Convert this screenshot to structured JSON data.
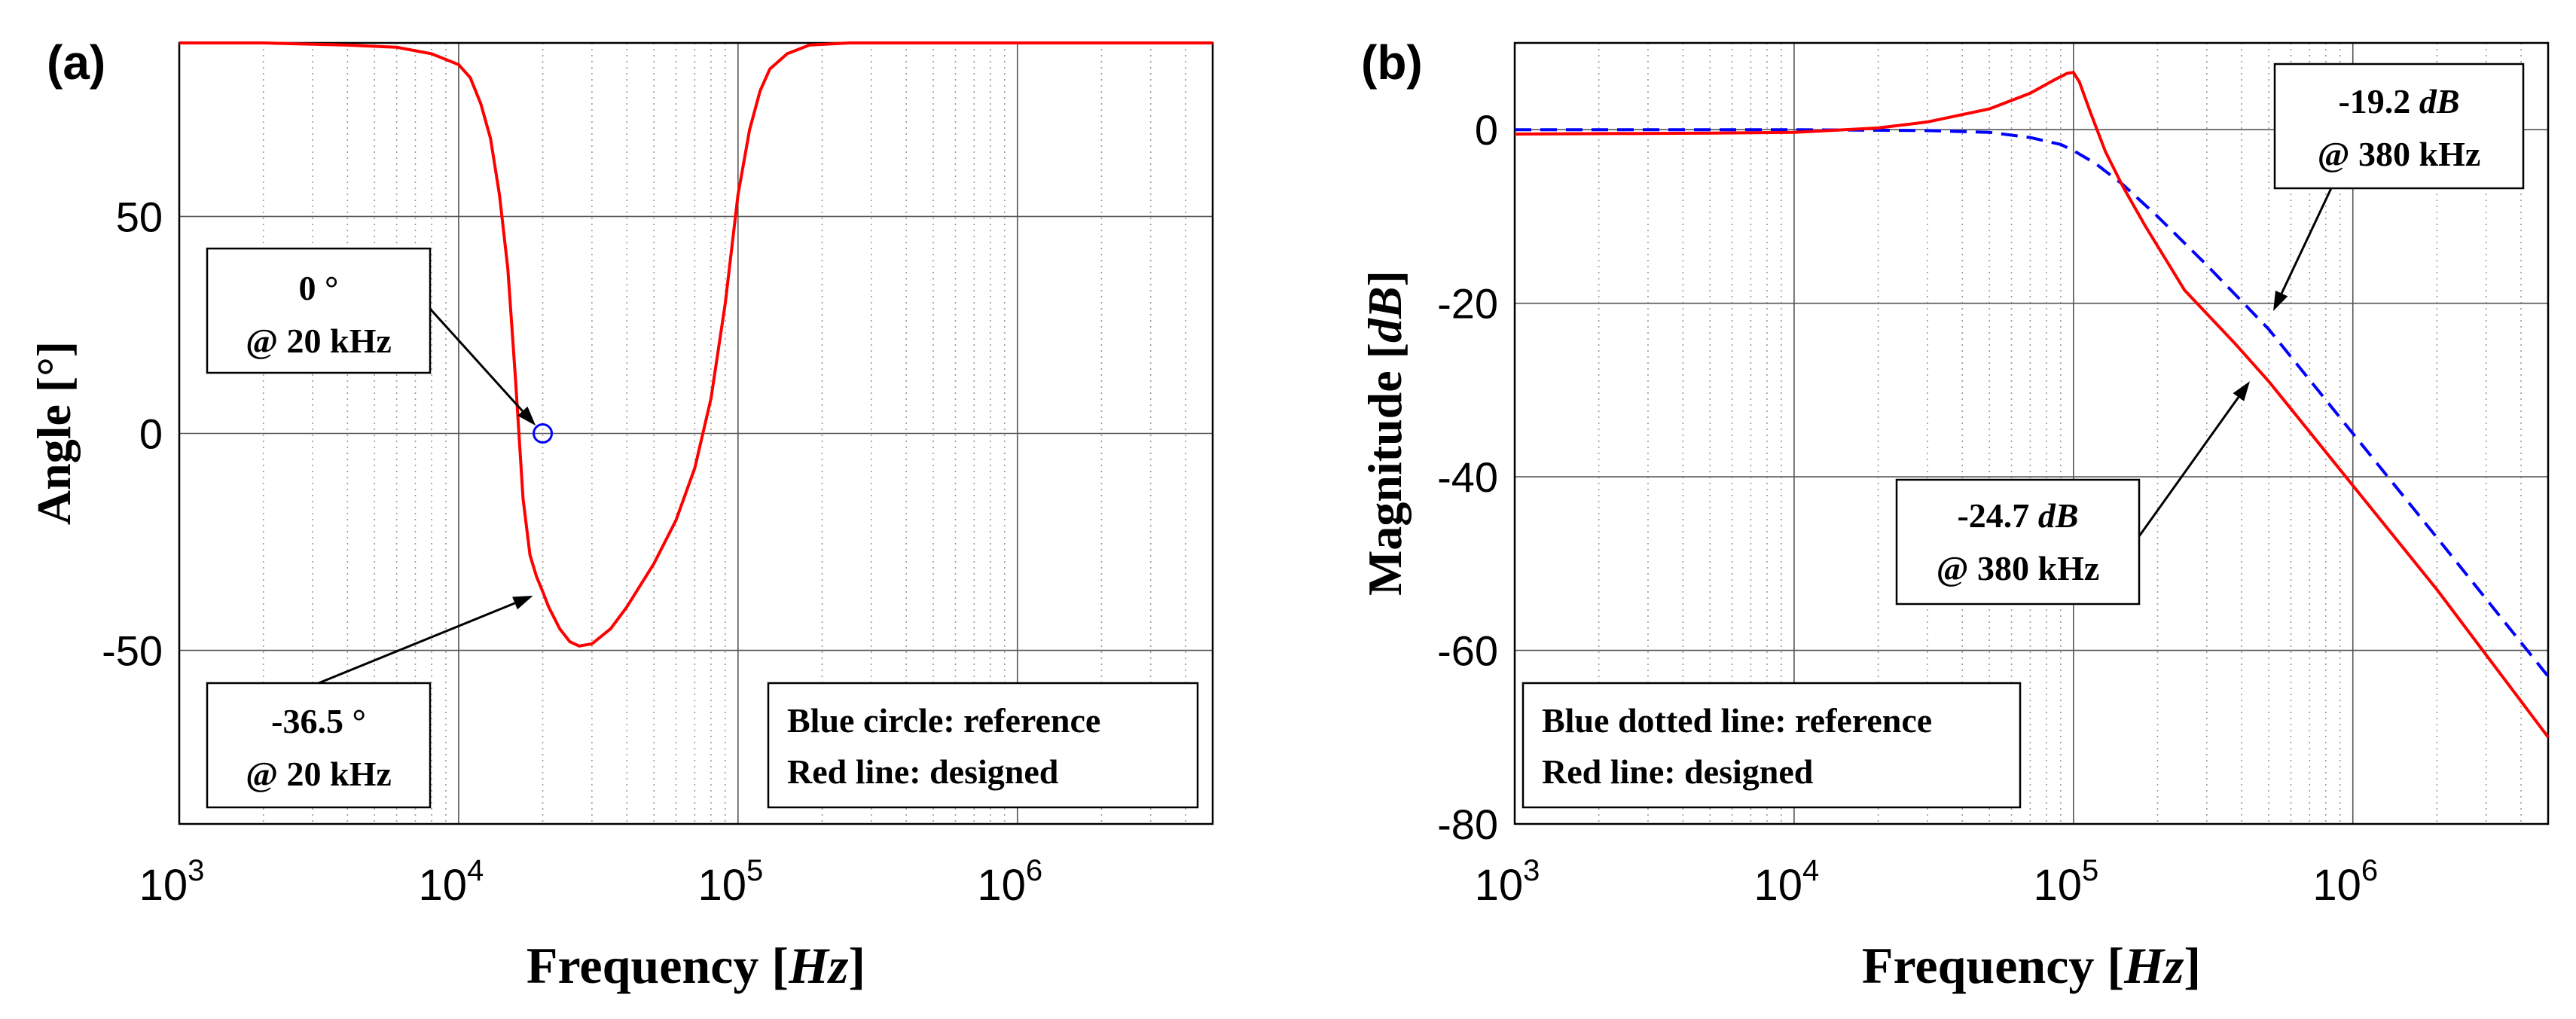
{
  "chart_data": [
    {
      "type": "line",
      "panel_label": "(a)",
      "xlabel_prefix": "Frequency [",
      "xlabel_unit": "Hz",
      "xlabel_suffix": "]",
      "ylabel": "Angle [°]",
      "xscale": "log",
      "xlim": [
        1000,
        5000000
      ],
      "ylim": [
        -90,
        90
      ],
      "x_tick_values": [
        1000,
        10000,
        100000,
        1000000
      ],
      "x_tick_base": "10",
      "x_tick_exps": [
        "3",
        "4",
        "5",
        "6"
      ],
      "y_ticks": [
        {
          "value": 50,
          "label": "50"
        },
        {
          "value": 0,
          "label": "0"
        },
        {
          "value": -50,
          "label": "-50"
        }
      ],
      "grid": true,
      "series": [
        {
          "name": "Red line: designed",
          "color": "#ff0000",
          "style": "solid",
          "x": [
            1000,
            2000,
            4000,
            6000,
            8000,
            10000,
            11000,
            12000,
            13000,
            14000,
            15000,
            16000,
            17000,
            18000,
            19000,
            20000,
            21000,
            23000,
            25000,
            27000,
            30000,
            35000,
            40000,
            50000,
            60000,
            70000,
            80000,
            90000,
            100000,
            110000,
            120000,
            130000,
            150000,
            180000,
            250000,
            400000,
            1000000,
            5000000
          ],
          "y": [
            90,
            90,
            89.5,
            89,
            87.5,
            85,
            82,
            76,
            68,
            55,
            38,
            12,
            -15,
            -28,
            -33,
            -36.5,
            -40,
            -45,
            -48,
            -49,
            -48.5,
            -45,
            -40,
            -30,
            -20,
            -8,
            8,
            30,
            55,
            70,
            79,
            84,
            87.5,
            89.5,
            90,
            90,
            90,
            90
          ]
        }
      ],
      "markers": [
        {
          "name": "Blue circle: reference",
          "x": 20000,
          "y": 0,
          "color": "#0000ff",
          "shape": "circle"
        }
      ],
      "annotations": [
        {
          "line1": "0 °",
          "line2": "@ 20 kHz",
          "target_x": 20000,
          "target_y": 0
        },
        {
          "line1": "-36.5 °",
          "line2": "@ 20 kHz",
          "target_x": 20000,
          "target_y": -36.5
        }
      ],
      "legend": {
        "position": "bottom-right",
        "entries": [
          "Blue circle: reference",
          "Red line: designed"
        ]
      }
    },
    {
      "type": "line",
      "panel_label": "(b)",
      "xlabel_prefix": "Frequency [",
      "xlabel_unit": "Hz",
      "xlabel_suffix": "]",
      "ylabel_prefix": "Magnitude [",
      "ylabel_unit": "dB",
      "ylabel_suffix": "]",
      "xscale": "log",
      "xlim": [
        1000,
        5000000
      ],
      "ylim": [
        -80,
        10
      ],
      "x_tick_values": [
        1000,
        10000,
        100000,
        1000000
      ],
      "x_tick_base": "10",
      "x_tick_exps": [
        "3",
        "4",
        "5",
        "6"
      ],
      "y_ticks": [
        {
          "value": 0,
          "label": "0"
        },
        {
          "value": -20,
          "label": "-20"
        },
        {
          "value": -40,
          "label": "-40"
        },
        {
          "value": -60,
          "label": "-60"
        },
        {
          "value": -80,
          "label": "-80"
        }
      ],
      "grid": true,
      "series": [
        {
          "name": "Blue dotted line: reference",
          "color": "#0000ff",
          "style": "dashed",
          "x": [
            1000,
            10000,
            30000,
            50000,
            70000,
            90000,
            100000,
            120000,
            150000,
            200000,
            300000,
            500000,
            1000000,
            2000000,
            5000000
          ],
          "y": [
            0,
            0,
            -0.1,
            -0.3,
            -0.9,
            -1.7,
            -2.4,
            -3.9,
            -6.3,
            -10,
            -15.6,
            -23,
            -35,
            -47,
            -63
          ]
        },
        {
          "name": "Red line: designed",
          "color": "#ff0000",
          "style": "solid",
          "x": [
            1000,
            5000,
            10000,
            20000,
            30000,
            50000,
            70000,
            85000,
            95000,
            100000,
            105000,
            115000,
            130000,
            150000,
            180000,
            250000,
            380000,
            500000,
            1000000,
            2000000,
            5000000
          ],
          "y": [
            -0.5,
            -0.4,
            -0.3,
            0.2,
            0.9,
            2.4,
            4.2,
            5.7,
            6.5,
            6.6,
            5.5,
            2,
            -2.5,
            -6.5,
            -11,
            -18.5,
            -24.7,
            -29,
            -41,
            -53,
            -70
          ]
        }
      ],
      "annotations": [
        {
          "line1_num": "-19.2 ",
          "line1_unit": "dB",
          "line2": "@ 380 kHz",
          "target_x": 500000,
          "target_y": -22
        },
        {
          "line1_num": "-24.7 ",
          "line1_unit": "dB",
          "line2": "@ 380 kHz",
          "target_x": 450000,
          "target_y": -28
        }
      ],
      "legend": {
        "position": "bottom-left",
        "entries": [
          "Blue dotted line: reference",
          "Red line: designed"
        ]
      }
    }
  ]
}
